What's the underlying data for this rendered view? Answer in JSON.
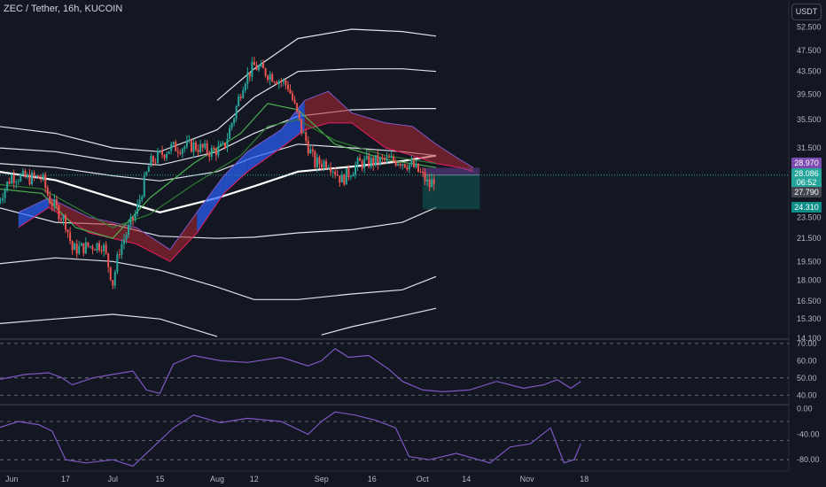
{
  "header": {
    "title": "ZEC / Tether, 16h, KUCOIN",
    "currency": "USDT"
  },
  "colors": {
    "background": "#131722",
    "up_candle": "#26a69a",
    "down_candle": "#ef5350",
    "bands": "#e0e3eb",
    "ema": "#4caf50",
    "cloud_bull": "#2962ff",
    "cloud_bear": "#b22833",
    "oscillator": "#7e57c2",
    "short_zone": "#7b4bb0",
    "long_zone": "#0c5c5a"
  },
  "chart_data": [
    {
      "type": "candlestick",
      "pane": "price",
      "scale": "log",
      "ylim": [
        14.1,
        55.0
      ],
      "x_ticks": [
        "Jun",
        "17",
        "Jul",
        "15",
        "Aug",
        "12",
        "Sep",
        "16",
        "Oct",
        "14",
        "Nov",
        "18"
      ],
      "y_ticks": [
        "52.500",
        "47.500",
        "43.500",
        "39.500",
        "35.500",
        "31.500",
        "23.500",
        "21.500",
        "19.500",
        "18.000",
        "16.500",
        "15.300",
        "14.100"
      ],
      "price_labels": [
        {
          "value": "28.970",
          "color": "#7b4bb0"
        },
        {
          "value": "28.086",
          "color": "#26a69a"
        },
        {
          "value": "06:52",
          "color": "#26a69a"
        },
        {
          "value": "27.790",
          "color": "#434651"
        },
        {
          "value": "24.310",
          "color": "#0c8f86"
        }
      ],
      "close_path": [
        [
          "May 28",
          25.2
        ],
        [
          "Jun 1",
          28.0
        ],
        [
          "Jun 6",
          27.7
        ],
        [
          "Jun 10",
          27.8
        ],
        [
          "Jun 12",
          25.5
        ],
        [
          "Jun 17",
          23.0
        ],
        [
          "Jun 19",
          20.5
        ],
        [
          "Jun 24",
          20.8
        ],
        [
          "Jun 28",
          21.0
        ],
        [
          "Jul 1",
          17.8
        ],
        [
          "Jul 3",
          20.5
        ],
        [
          "Jul 8",
          24.0
        ],
        [
          "Jul 12",
          29.5
        ],
        [
          "Jul 18",
          31.5
        ],
        [
          "Jul 25",
          31.8
        ],
        [
          "Jul 30",
          31.0
        ],
        [
          "Aug 3",
          31.5
        ],
        [
          "Aug 6",
          36.0
        ],
        [
          "Aug 9",
          42.0
        ],
        [
          "Aug 12",
          44.5
        ],
        [
          "Aug 18",
          42.5
        ],
        [
          "Aug 22",
          41.0
        ],
        [
          "Aug 26",
          34.0
        ],
        [
          "Aug 30",
          29.5
        ],
        [
          "Sep 3",
          29.7
        ],
        [
          "Sep 7",
          27.5
        ],
        [
          "Sep 12",
          29.5
        ],
        [
          "Sep 18",
          29.8
        ],
        [
          "Sep 24",
          29.9
        ],
        [
          "Sep 28",
          29.2
        ],
        [
          "Oct 1",
          28.0
        ],
        [
          "Oct 3",
          26.8
        ],
        [
          "Oct 5",
          28.09
        ]
      ],
      "upper_bands": [
        [
          [
            "May 28",
            34.5
          ],
          [
            "Jun 14",
            33.5
          ],
          [
            "Jul 1",
            31.5
          ],
          [
            "Jul 15",
            31.0
          ],
          [
            "Aug 1",
            34.0
          ],
          [
            "Aug 12",
            39.0
          ],
          [
            "Aug 25",
            43.5
          ],
          [
            "Sep 10",
            44.0
          ],
          [
            "Sep 25",
            44.0
          ],
          [
            "Oct 5",
            43.5
          ]
        ],
        [
          [
            "May 28",
            31.5
          ],
          [
            "Jun 14",
            31.0
          ],
          [
            "Jul 1",
            29.8
          ],
          [
            "Jul 15",
            29.3
          ],
          [
            "Aug 1",
            31.0
          ],
          [
            "Aug 12",
            33.5
          ],
          [
            "Aug 25",
            36.0
          ],
          [
            "Sep 10",
            37.0
          ],
          [
            "Sep 25",
            37.2
          ],
          [
            "Oct 5",
            37.2
          ]
        ],
        [
          [
            "May 28",
            29.5
          ],
          [
            "Jun 14",
            29.0
          ],
          [
            "Jul 1",
            28.0
          ],
          [
            "Jul 15",
            27.4
          ],
          [
            "Aug 1",
            28.5
          ],
          [
            "Aug 12",
            30.3
          ],
          [
            "Aug 25",
            32.0
          ],
          [
            "Sep 10",
            31.5
          ],
          [
            "Sep 25",
            31.0
          ],
          [
            "Oct 5",
            30.5
          ]
        ],
        [
          [
            "Aug 1",
            38.5
          ],
          [
            "Aug 12",
            44.0
          ],
          [
            "Aug 25",
            50.0
          ],
          [
            "Sep 10",
            52.0
          ],
          [
            "Sep 25",
            51.5
          ],
          [
            "Oct 5",
            50.5
          ]
        ]
      ],
      "basis": [
        [
          "May 28",
          28.5
        ],
        [
          "Jun 14",
          27.5
        ],
        [
          "Jul 1",
          25.5
        ],
        [
          "Jul 15",
          24.0
        ],
        [
          "Aug 1",
          25.5
        ],
        [
          "Aug 12",
          26.8
        ],
        [
          "Aug 25",
          28.5
        ],
        [
          "Sep 10",
          29.1
        ],
        [
          "Sep 25",
          29.8
        ],
        [
          "Oct 5",
          30.5
        ]
      ],
      "lower_bands": [
        [
          [
            "May 28",
            24.5
          ],
          [
            "Jun 14",
            23.0
          ],
          [
            "Jul 1",
            22.8
          ],
          [
            "Jul 15",
            21.7
          ],
          [
            "Aug 1",
            21.5
          ],
          [
            "Aug 12",
            21.6
          ],
          [
            "Aug 25",
            22.0
          ],
          [
            "Sep 10",
            22.3
          ],
          [
            "Sep 25",
            23.0
          ],
          [
            "Oct 5",
            24.5
          ]
        ],
        [
          [
            "May 28",
            19.3
          ],
          [
            "Jun 14",
            19.8
          ],
          [
            "Jul 1",
            19.5
          ],
          [
            "Jul 15",
            18.8
          ],
          [
            "Aug 1",
            17.5
          ],
          [
            "Aug 12",
            16.6
          ],
          [
            "Aug 25",
            16.6
          ],
          [
            "Sep 10",
            17.0
          ],
          [
            "Sep 25",
            17.3
          ],
          [
            "Oct 5",
            18.3
          ]
        ],
        [
          [
            "May 28",
            15.0
          ],
          [
            "Jun 14",
            15.3
          ],
          [
            "Jul 1",
            15.6
          ],
          [
            "Jul 15",
            15.3
          ],
          [
            "Aug 1",
            14.2
          ]
        ],
        [
          [
            "Sep 1",
            14.3
          ],
          [
            "Sep 10",
            14.8
          ],
          [
            "Sep 25",
            15.5
          ],
          [
            "Oct 5",
            16.0
          ]
        ]
      ],
      "ema_fast": [
        [
          "May 28",
          26.5
        ],
        [
          "Jun 10",
          26.0
        ],
        [
          "Jun 20",
          22.5
        ],
        [
          "Jul 1",
          21.5
        ],
        [
          "Jul 12",
          25.5
        ],
        [
          "Jul 25",
          29.5
        ],
        [
          "Aug 8",
          33.5
        ],
        [
          "Aug 16",
          38.0
        ],
        [
          "Aug 25",
          37.0
        ],
        [
          "Sep 5",
          32.0
        ],
        [
          "Sep 20",
          30.0
        ],
        [
          "Oct 5",
          29.0
        ]
      ],
      "ema_slow": [
        [
          "May 28",
          27.0
        ],
        [
          "Jun 10",
          26.5
        ],
        [
          "Jun 20",
          24.5
        ],
        [
          "Jul 1",
          22.5
        ],
        [
          "Jul 12",
          23.8
        ],
        [
          "Jul 25",
          27.0
        ],
        [
          "Aug 8",
          30.5
        ],
        [
          "Aug 16",
          34.5
        ],
        [
          "Aug 25",
          35.5
        ],
        [
          "Sep 5",
          32.5
        ],
        [
          "Sep 20",
          30.5
        ],
        [
          "Oct 5",
          29.5
        ]
      ],
      "cloud_top": [
        [
          "Jun 3",
          24.0
        ],
        [
          "Jun 12",
          25.5
        ],
        [
          "Jun 24",
          23.5
        ],
        [
          "Jul 8",
          22.5
        ],
        [
          "Jul 18",
          20.5
        ],
        [
          "Jul 26",
          24.0
        ],
        [
          "Aug 3",
          28.0
        ],
        [
          "Aug 10",
          31.0
        ],
        [
          "Aug 20",
          34.0
        ],
        [
          "Aug 27",
          38.5
        ],
        [
          "Sep 3",
          40.0
        ],
        [
          "Sep 10",
          36.5
        ],
        [
          "Sep 20",
          35.0
        ],
        [
          "Sep 28",
          34.5
        ],
        [
          "Oct 5",
          32.0
        ],
        [
          "Oct 12",
          30.0
        ],
        [
          "Oct 16",
          29.0
        ]
      ],
      "cloud_bottom": [
        [
          "Jun 3",
          22.5
        ],
        [
          "Jun 12",
          24.5
        ],
        [
          "Jun 24",
          22.0
        ],
        [
          "Jul 8",
          21.0
        ],
        [
          "Jul 18",
          19.5
        ],
        [
          "Jul 26",
          22.0
        ],
        [
          "Aug 3",
          26.0
        ],
        [
          "Aug 10",
          28.5
        ],
        [
          "Aug 20",
          31.5
        ],
        [
          "Aug 27",
          34.0
        ],
        [
          "Sep 3",
          35.0
        ],
        [
          "Sep 10",
          35.0
        ],
        [
          "Sep 20",
          31.5
        ],
        [
          "Sep 28",
          30.5
        ],
        [
          "Oct 5",
          29.5
        ],
        [
          "Oct 12",
          29.0
        ],
        [
          "Oct 16",
          28.5
        ]
      ],
      "position_tool": {
        "start": "Oct 1",
        "end": "Oct 18",
        "stop": 28.97,
        "entry": 28.086,
        "target": 24.31
      }
    },
    {
      "type": "line",
      "pane": "oscillator-1",
      "ylim": [
        35,
        72
      ],
      "y_ticks": [
        "70.00",
        "60.00",
        "50.00",
        "40.00"
      ],
      "levels": [
        70,
        50,
        40
      ],
      "series": [
        {
          "values": [
            [
              0,
              49
            ],
            [
              8,
              52
            ],
            [
              15,
              53
            ],
            [
              19,
              50
            ],
            [
              22,
              46
            ],
            [
              28,
              50
            ],
            [
              34,
              52
            ],
            [
              40,
              54
            ],
            [
              44,
              43
            ],
            [
              48,
              41
            ],
            [
              52,
              58
            ],
            [
              58,
              63
            ],
            [
              66,
              60
            ],
            [
              74,
              59
            ],
            [
              84,
              62
            ],
            [
              92,
              57
            ],
            [
              96,
              60
            ],
            [
              100,
              67
            ],
            [
              104,
              62
            ],
            [
              110,
              63
            ],
            [
              116,
              55
            ],
            [
              120,
              48
            ],
            [
              126,
              43
            ],
            [
              132,
              42
            ],
            [
              140,
              43
            ],
            [
              148,
              48
            ],
            [
              156,
              44
            ],
            [
              162,
              46
            ],
            [
              166,
              49
            ],
            [
              170,
              44
            ],
            [
              173,
              48
            ]
          ]
        }
      ]
    },
    {
      "type": "line",
      "pane": "oscillator-2",
      "ylim": [
        -95,
        5
      ],
      "y_ticks": [
        "0.00",
        "-40.00",
        "-80.00"
      ],
      "levels": [
        -20,
        -50,
        -80
      ],
      "series": [
        {
          "values": [
            [
              0,
              -30
            ],
            [
              6,
              -20
            ],
            [
              12,
              -25
            ],
            [
              16,
              -35
            ],
            [
              20,
              -80
            ],
            [
              26,
              -85
            ],
            [
              34,
              -80
            ],
            [
              40,
              -90
            ],
            [
              46,
              -60
            ],
            [
              52,
              -30
            ],
            [
              58,
              -10
            ],
            [
              66,
              -22
            ],
            [
              74,
              -15
            ],
            [
              84,
              -20
            ],
            [
              92,
              -40
            ],
            [
              96,
              -20
            ],
            [
              100,
              -5
            ],
            [
              106,
              -10
            ],
            [
              112,
              -18
            ],
            [
              118,
              -30
            ],
            [
              122,
              -75
            ],
            [
              128,
              -80
            ],
            [
              136,
              -70
            ],
            [
              146,
              -85
            ],
            [
              152,
              -60
            ],
            [
              158,
              -55
            ],
            [
              164,
              -30
            ],
            [
              168,
              -85
            ],
            [
              171,
              -80
            ],
            [
              173,
              -55
            ]
          ]
        }
      ]
    }
  ]
}
